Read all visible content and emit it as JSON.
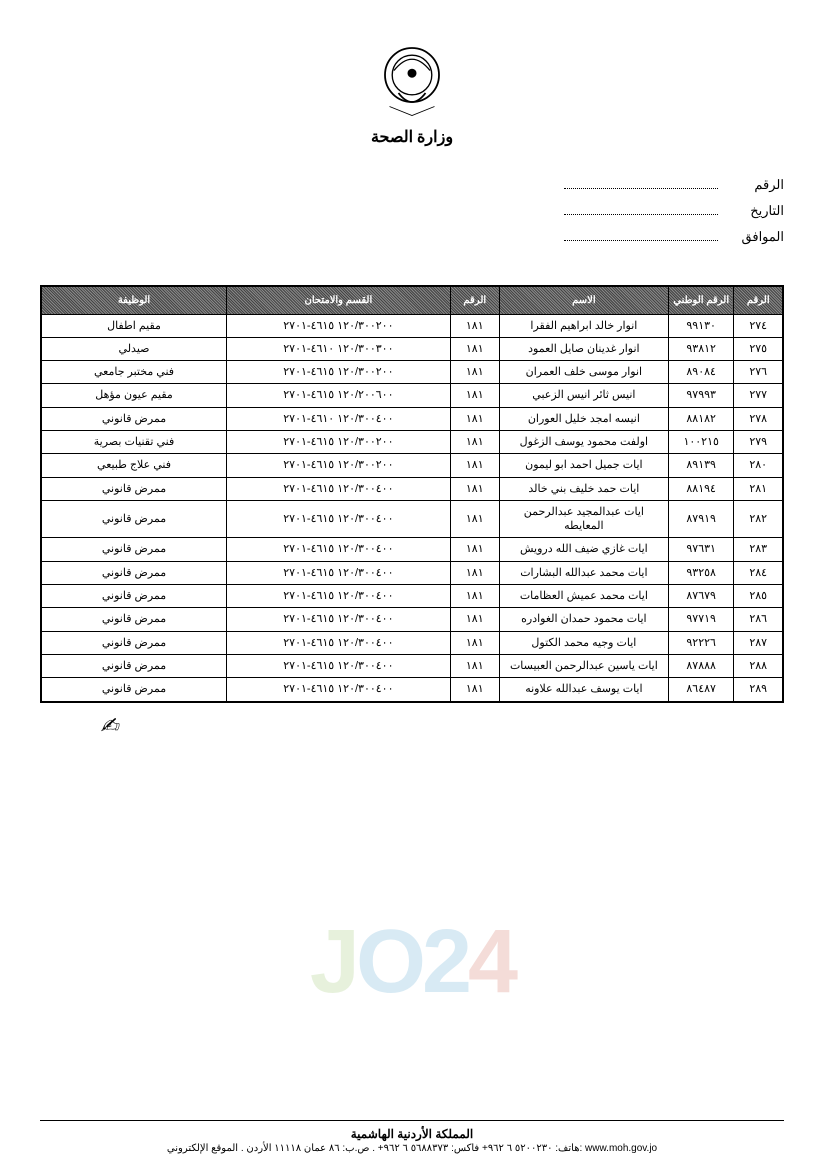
{
  "ministry_label": "وزارة الصحة",
  "meta": {
    "number_label": "الرقم",
    "date_label": "التاريخ",
    "corresponding_label": "الموافق"
  },
  "table": {
    "columns": [
      "الرقم",
      "الرقم الوطني",
      "الاسم",
      "الرقم",
      "القسم والامتحان",
      "الوظيفة"
    ],
    "rows": [
      {
        "seq": "٢٧٤",
        "id": "٩٩١٣٠",
        "name": "انوار خالد ابراهيم الفقرا",
        "num": "١٨١",
        "code": "١٢٠/٣٠٠٢٠٠ ٤٦١٥-٢٧٠١",
        "role": "مقيم اطفال"
      },
      {
        "seq": "٢٧٥",
        "id": "٩٣٨١٢",
        "name": "انوار غدينان صايل العمود",
        "num": "١٨١",
        "code": "١٢٠/٣٠٠٣٠٠ ٤٦١٠-٢٧٠١",
        "role": "صيدلي"
      },
      {
        "seq": "٢٧٦",
        "id": "٨٩٠٨٤",
        "name": "انوار موسى خلف العمران",
        "num": "١٨١",
        "code": "١٢٠/٣٠٠٢٠٠ ٤٦١٥-٢٧٠١",
        "role": "فني مختبر جامعي"
      },
      {
        "seq": "٢٧٧",
        "id": "٩٧٩٩٣",
        "name": "انيس ثائر انيس الزعبي",
        "num": "١٨١",
        "code": "١٢٠/٢٠٠٦٠٠ ٤٦١٥-٢٧٠١",
        "role": "مقيم عيون مؤهل"
      },
      {
        "seq": "٢٧٨",
        "id": "٨٨١٨٢",
        "name": "انيسه امجد خليل العوران",
        "num": "١٨١",
        "code": "١٢٠/٣٠٠٤٠٠ ٤٦١٠-٢٧٠١",
        "role": "ممرض قانوني"
      },
      {
        "seq": "٢٧٩",
        "id": "١٠٠٢١٥",
        "name": "اولفت محمود يوسف الزغول",
        "num": "١٨١",
        "code": "١٢٠/٣٠٠٢٠٠ ٤٦١٥-٢٧٠١",
        "role": "فني تقنيات بصرية"
      },
      {
        "seq": "٢٨٠",
        "id": "٨٩١٣٩",
        "name": "ايات جميل احمد ابو ليمون",
        "num": "١٨١",
        "code": "١٢٠/٣٠٠٢٠٠ ٤٦١٥-٢٧٠١",
        "role": "فني علاج طبيعي"
      },
      {
        "seq": "٢٨١",
        "id": "٨٨١٩٤",
        "name": "ايات حمد خليف بني خالد",
        "num": "١٨١",
        "code": "١٢٠/٣٠٠٤٠٠ ٤٦١٥-٢٧٠١",
        "role": "ممرض قانوني"
      },
      {
        "seq": "٢٨٢",
        "id": "٨٧٩١٩",
        "name": "ايات عبدالمجيد عبدالرحمن المعايطه",
        "num": "١٨١",
        "code": "١٢٠/٣٠٠٤٠٠ ٤٦١٥-٢٧٠١",
        "role": "ممرض قانوني"
      },
      {
        "seq": "٢٨٣",
        "id": "٩٧٦٣١",
        "name": "ايات غازي ضيف الله درويش",
        "num": "١٨١",
        "code": "١٢٠/٣٠٠٤٠٠ ٤٦١٥-٢٧٠١",
        "role": "ممرض قانوني"
      },
      {
        "seq": "٢٨٤",
        "id": "٩٣٢٥٨",
        "name": "ايات محمد عبدالله البشارات",
        "num": "١٨١",
        "code": "١٢٠/٣٠٠٤٠٠ ٤٦١٥-٢٧٠١",
        "role": "ممرض قانوني"
      },
      {
        "seq": "٢٨٥",
        "id": "٨٧٦٧٩",
        "name": "ايات محمد عميش العظامات",
        "num": "١٨١",
        "code": "١٢٠/٣٠٠٤٠٠ ٤٦١٥-٢٧٠١",
        "role": "ممرض قانوني"
      },
      {
        "seq": "٢٨٦",
        "id": "٩٧٧١٩",
        "name": "ايات محمود حمدان الغوادره",
        "num": "١٨١",
        "code": "١٢٠/٣٠٠٤٠٠ ٤٦١٥-٢٧٠١",
        "role": "ممرض قانوني"
      },
      {
        "seq": "٢٨٧",
        "id": "٩٢٢٢٦",
        "name": "ايات وجيه محمد الكتول",
        "num": "١٨١",
        "code": "١٢٠/٣٠٠٤٠٠ ٤٦١٥-٢٧٠١",
        "role": "ممرض قانوني"
      },
      {
        "seq": "٢٨٨",
        "id": "٨٧٨٨٨",
        "name": "ايات ياسين عبدالرحمن العبيسات",
        "num": "١٨١",
        "code": "١٢٠/٣٠٠٤٠٠ ٤٦١٥-٢٧٠١",
        "role": "ممرض قانوني"
      },
      {
        "seq": "٢٨٩",
        "id": "٨٦٤٨٧",
        "name": "ايات يوسف عبدالله علاونه",
        "num": "١٨١",
        "code": "١٢٠/٣٠٠٤٠٠ ٤٦١٥-٢٧٠١",
        "role": "ممرض قانوني"
      }
    ],
    "cell_fontsize": 11,
    "header_bg": "#555555",
    "header_fg": "#ffffff",
    "border_color": "#000000"
  },
  "signature_mark": "✍︎",
  "watermark": {
    "text_j": "J",
    "text_o": "O",
    "text_2": "2",
    "text_4": "4"
  },
  "footer": {
    "line1": "المملكة الأردنية الهاشمية",
    "line2": "هاتف: ٥٢٠٠٢٣٠ ٦ ٩٦٢+ فاكس: ٥٦٨٨٣٧٣ ٦ ٩٦٢+ . ص.ب: ٨٦ عمان ١١١١٨ الأردن . الموقع الإلكتروني: www.moh.gov.jo"
  }
}
